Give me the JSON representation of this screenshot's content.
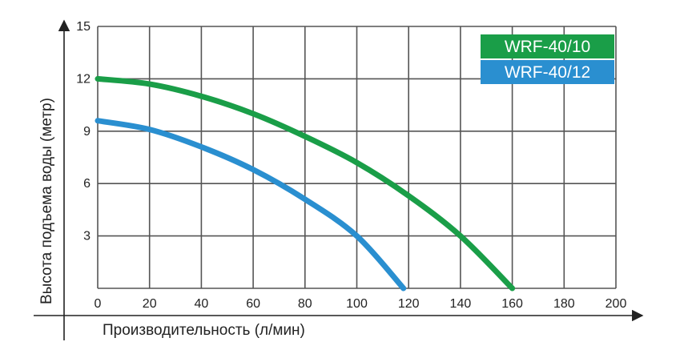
{
  "chart_data": {
    "type": "line",
    "title": "",
    "xlabel": "Производительность (л/мин)",
    "ylabel": "Высота подъема воды (метр)",
    "xlim": [
      0,
      200
    ],
    "ylim": [
      0,
      15
    ],
    "x_ticks": [
      "0",
      "20",
      "40",
      "60",
      "80",
      "100",
      "120",
      "140",
      "160",
      "180",
      "200"
    ],
    "y_ticks": [
      "3",
      "6",
      "9",
      "12",
      "15"
    ],
    "grid": true,
    "legend_position": "top-right",
    "series": [
      {
        "name": "WRF-40/10",
        "color": "#1a9e48",
        "x": [
          0,
          20,
          40,
          60,
          80,
          100,
          120,
          140,
          160
        ],
        "y": [
          12.0,
          11.7,
          11.0,
          10.0,
          8.7,
          7.2,
          5.3,
          3.0,
          0.0
        ]
      },
      {
        "name": "WRF-40/12",
        "color": "#2a8fd0",
        "x": [
          0,
          20,
          40,
          60,
          80,
          100,
          118
        ],
        "y": [
          9.6,
          9.1,
          8.1,
          6.8,
          5.1,
          3.0,
          0.0
        ]
      }
    ]
  }
}
